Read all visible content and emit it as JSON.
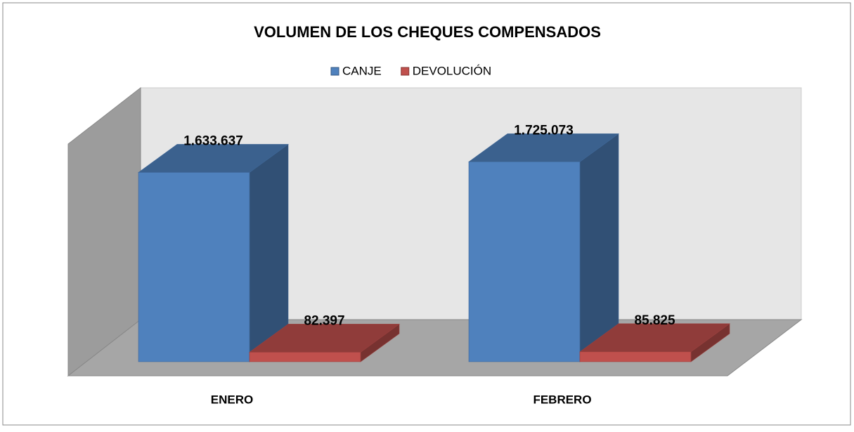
{
  "chart_data": {
    "type": "bar3d",
    "title": "VOLUMEN DE LOS CHEQUES COMPENSADOS",
    "categories": [
      "ENERO",
      "FEBRERO"
    ],
    "series": [
      {
        "name": "CANJE",
        "color": "#4f81bd",
        "values": [
          1633637,
          1725073
        ],
        "value_labels": [
          "1.633.637",
          "1.725.073"
        ]
      },
      {
        "name": "DEVOLUCIÓN",
        "color": "#c0504d",
        "values": [
          82397,
          85825
        ],
        "value_labels": [
          "82.397",
          "85.825"
        ]
      }
    ],
    "ylim": [
      0,
      2000000
    ],
    "legend": "top"
  }
}
